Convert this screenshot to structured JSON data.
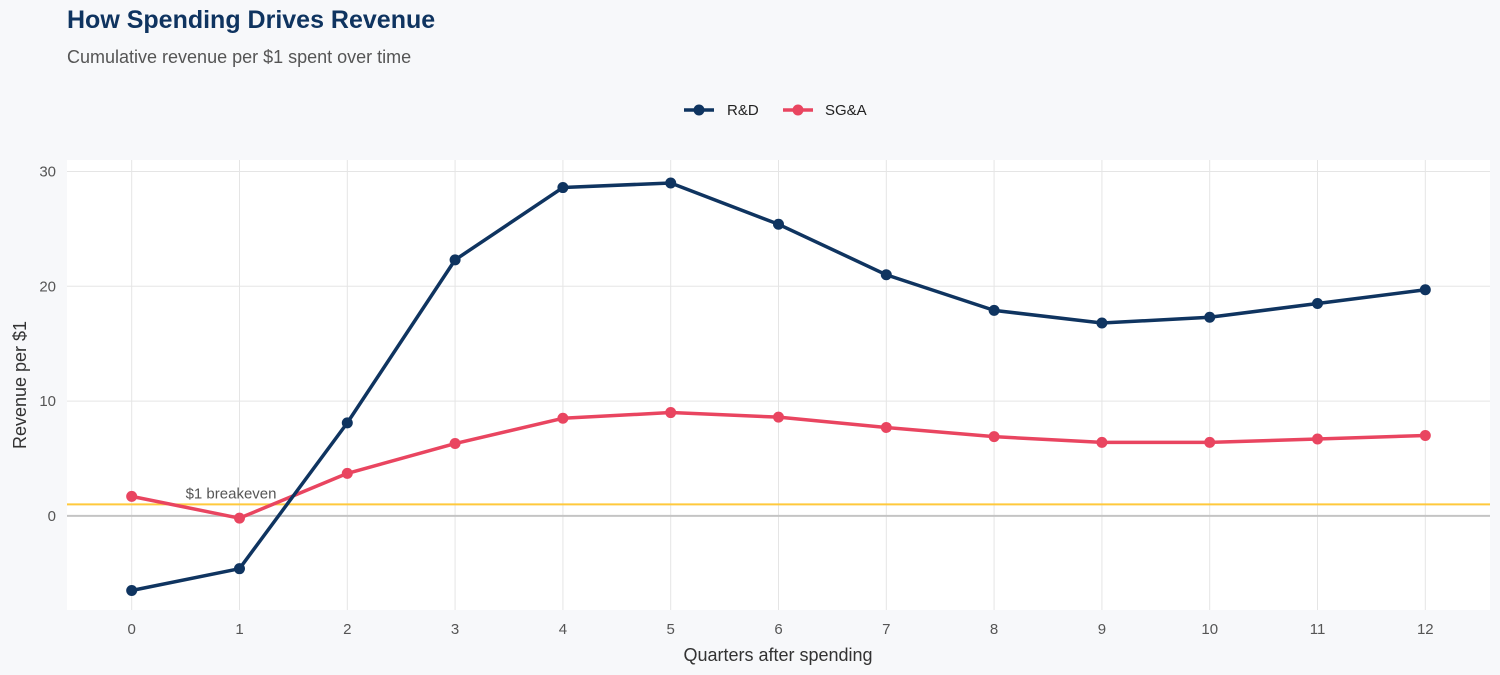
{
  "chart_data": {
    "type": "line",
    "title": "How Spending Drives Revenue",
    "subtitle": "Cumulative revenue per $1 spent over time",
    "xlabel": "Quarters after spending",
    "ylabel": "Revenue per $1",
    "x": [
      0,
      1,
      2,
      3,
      4,
      5,
      6,
      7,
      8,
      9,
      10,
      11,
      12
    ],
    "xlim": [
      -0.6,
      12.6
    ],
    "ylim": [
      -8.2,
      31
    ],
    "yticks": [
      0,
      10,
      20,
      30
    ],
    "grid": true,
    "legend_position": "top",
    "series": [
      {
        "name": "R&D",
        "color": "#0f3460",
        "values": [
          -6.5,
          -4.6,
          8.1,
          22.3,
          28.6,
          29.0,
          25.4,
          21.0,
          17.9,
          16.8,
          17.3,
          18.5,
          19.7
        ]
      },
      {
        "name": "SG&A",
        "color": "#e94560",
        "values": [
          1.7,
          -0.2,
          3.7,
          6.3,
          8.5,
          9.0,
          8.6,
          7.7,
          6.9,
          6.4,
          6.4,
          6.7,
          7.0
        ]
      }
    ],
    "reference_line": {
      "y": 1,
      "label": "$1 breakeven",
      "color": "#ffc93c"
    }
  }
}
